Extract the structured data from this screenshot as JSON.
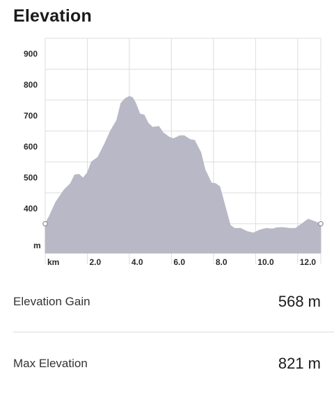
{
  "header": {
    "title": "Elevation"
  },
  "chart_data": {
    "type": "area",
    "title": "",
    "xlabel": "km",
    "ylabel": "m",
    "x_ticks": [
      "2.0",
      "4.0",
      "6.0",
      "8.0",
      "10.0",
      "12.0"
    ],
    "y_ticks": [
      "400",
      "500",
      "600",
      "700",
      "800",
      "900"
    ],
    "xlim": [
      0,
      13.1
    ],
    "ylim": [
      305,
      1000
    ],
    "grid": true,
    "fill_color": "#b9b8c6",
    "series": [
      {
        "x": [
          0,
          0.2,
          0.5,
          0.9,
          1.2,
          1.4,
          1.6,
          1.8,
          2.0,
          2.2,
          2.5,
          2.8,
          3.1,
          3.4,
          3.6,
          3.8,
          4.0,
          4.15,
          4.3,
          4.5,
          4.7,
          4.9,
          5.1,
          5.4,
          5.6,
          5.9,
          6.1,
          6.4,
          6.6,
          6.9,
          7.1,
          7.4,
          7.6,
          7.9,
          8.1,
          8.3,
          8.5,
          8.8,
          9.0,
          9.3,
          9.6,
          9.9,
          10.2,
          10.5,
          10.8,
          11.0,
          11.3,
          11.6,
          11.9,
          12.2,
          12.5,
          12.7,
          13.1
        ],
        "y": [
          400,
          425,
          470,
          510,
          530,
          558,
          560,
          548,
          565,
          600,
          615,
          655,
          700,
          735,
          790,
          805,
          812,
          808,
          790,
          755,
          752,
          725,
          712,
          715,
          695,
          680,
          675,
          685,
          685,
          672,
          670,
          630,
          575,
          532,
          530,
          520,
          470,
          395,
          385,
          385,
          375,
          370,
          380,
          385,
          383,
          387,
          388,
          385,
          385,
          400,
          415,
          410,
          400
        ]
      }
    ]
  },
  "stats": [
    {
      "label": "Elevation Gain",
      "value": "568 m"
    },
    {
      "label": "Max Elevation",
      "value": "821 m"
    }
  ]
}
